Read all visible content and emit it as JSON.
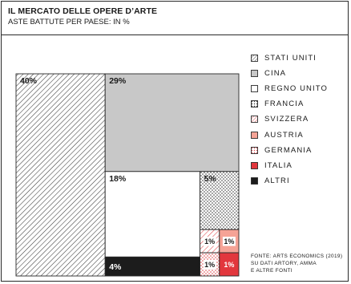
{
  "header": {
    "title": "IL MERCATO DELLE OPERE D’ARTE",
    "subtitle": "ASTE BATTUTE PER PAESE: IN %"
  },
  "chart_data": {
    "type": "treemap",
    "title": "IL MERCATO DELLE OPERE D’ARTE",
    "subtitle": "ASTE BATTUTE PER PAESE: IN %",
    "series": [
      {
        "name": "STATI UNITI",
        "value": 40,
        "label": "40%",
        "pattern": "diagonal-hatch",
        "color": "#3a3a3a"
      },
      {
        "name": "CINA",
        "value": 29,
        "label": "29%",
        "pattern": "solid",
        "color": "#c8c8c8"
      },
      {
        "name": "REGNO UNITO",
        "value": 18,
        "label": "18%",
        "pattern": "solid",
        "color": "#ffffff"
      },
      {
        "name": "FRANCIA",
        "value": 5,
        "label": "5%",
        "pattern": "dots",
        "color": "#3a3a3a"
      },
      {
        "name": "SVIZZERA",
        "value": 1,
        "label": "1%",
        "pattern": "diagonal-hatch",
        "color": "#e0474c"
      },
      {
        "name": "AUSTRIA",
        "value": 1,
        "label": "1%",
        "pattern": "solid",
        "color": "#f5a396"
      },
      {
        "name": "GERMANIA",
        "value": 1,
        "label": "1%",
        "pattern": "dots",
        "color": "#e0474c"
      },
      {
        "name": "ITALIA",
        "value": 1,
        "label": "1%",
        "pattern": "solid",
        "color": "#e2373d"
      },
      {
        "name": "ALTRI",
        "value": 4,
        "label": "4%",
        "pattern": "solid",
        "color": "#1c1c1c"
      }
    ],
    "legend_position": "right"
  },
  "source": {
    "lines": [
      "FONTE: ARTS ECONOMICS (2019)",
      "SU DATI ARTORY, AMMA",
      "E ALTRE FONTI"
    ]
  }
}
